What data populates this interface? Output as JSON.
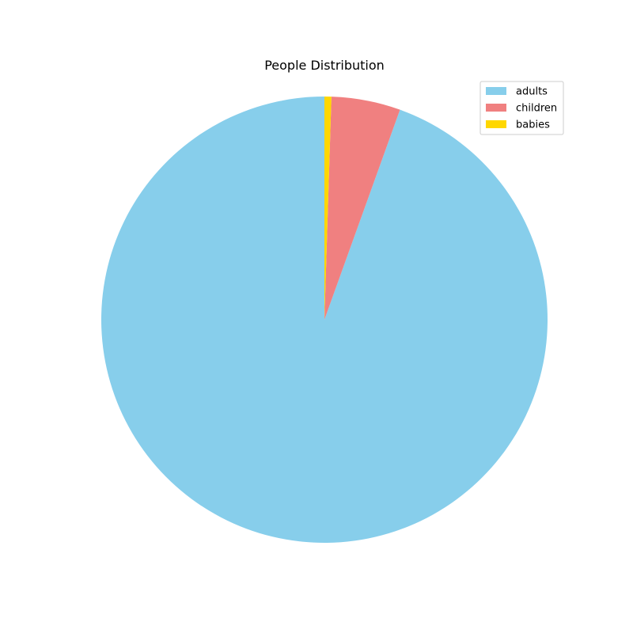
{
  "chart_data": {
    "type": "pie",
    "title": "People Distribution",
    "categories": [
      "adults",
      "children",
      "babies"
    ],
    "values": [
      94.5,
      5.0,
      0.5
    ],
    "colors": [
      "#87CEEB",
      "#F08080",
      "#FFD700"
    ],
    "start_angle_deg": 90,
    "direction": "counterclockwise",
    "legend_position": "top-right"
  }
}
